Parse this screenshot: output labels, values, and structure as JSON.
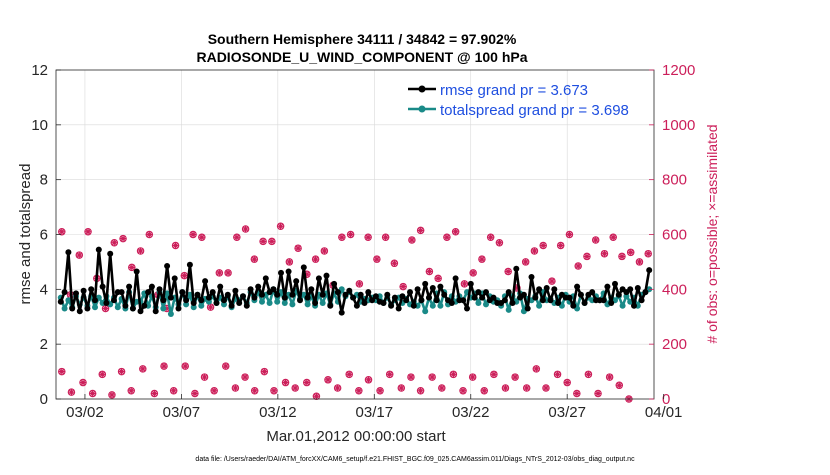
{
  "chart_data": {
    "type": "line",
    "title_line1": "Southern Hemisphere 34111 / 34842 = 97.902%",
    "title_line2": "RADIOSONDE_U_WIND_COMPONENT @ 100 hPa",
    "xlabel": "Mar.01,2012 00:00:00 start",
    "ylabel_left": "rmse and totalspread",
    "ylabel_right": "# of obs: o=possible; ×=assimilated",
    "footer": "data file: /Users/raeder/DAI/ATM_forcXX/CAM6_setup/f.e21.FHIST_BGC.f09_025.CAM6assim.011/Diags_NTrS_2012-03/obs_diag_output.nc",
    "x_range_days": [
      0.5,
      31.5
    ],
    "x_ticks": [
      {
        "day": 2,
        "label": "03/02"
      },
      {
        "day": 7,
        "label": "03/07"
      },
      {
        "day": 12,
        "label": "03/12"
      },
      {
        "day": 17,
        "label": "03/17"
      },
      {
        "day": 22,
        "label": "03/22"
      },
      {
        "day": 27,
        "label": "03/27"
      },
      {
        "day": 32,
        "label": "04/01"
      }
    ],
    "left_axis": {
      "min": 0,
      "max": 12,
      "ticks": [
        "0",
        "2",
        "4",
        "6",
        "8",
        "10",
        "12"
      ]
    },
    "right_axis": {
      "min": 0,
      "max": 1200,
      "ticks": [
        "0",
        "200",
        "400",
        "600",
        "800",
        "1000",
        "1200"
      ]
    },
    "legend": [
      {
        "label": "rmse grand pr = 3.673",
        "color": "#000000"
      },
      {
        "label": "totalspread grand pr = 3.698",
        "color": "#1a8a88"
      }
    ],
    "colors": {
      "rmse": "#000000",
      "spread": "#1a8a88",
      "obs": "#cc1f5a",
      "legend_text": "#1f4fe0",
      "right_axis": "#cc1f5a"
    },
    "series": [
      {
        "name": "rmse",
        "values": [
          3.55,
          3.9,
          5.35,
          3.3,
          3.85,
          3.2,
          3.95,
          3.3,
          4.0,
          3.6,
          5.45,
          4.1,
          3.5,
          5.3,
          3.6,
          3.9,
          3.9,
          3.4,
          4.1,
          3.3,
          4.65,
          3.2,
          3.4,
          3.9,
          4.1,
          3.2,
          4.0,
          3.6,
          4.85,
          3.7,
          4.4,
          3.3,
          3.9,
          3.6,
          4.9,
          3.5,
          3.8,
          3.6,
          4.3,
          3.7,
          3.9,
          3.5,
          4.1,
          3.6,
          3.8,
          3.4,
          3.95,
          3.5,
          3.75,
          3.4,
          4.0,
          3.7,
          4.1,
          3.8,
          4.4,
          3.9,
          4.0,
          3.8,
          4.6,
          3.7,
          4.65,
          3.8,
          4.3,
          3.6,
          4.8,
          3.7,
          4.0,
          3.5,
          4.4,
          3.8,
          4.5,
          3.4,
          4.2,
          3.9,
          3.15,
          3.8,
          3.95,
          3.7,
          3.4,
          3.8,
          3.5,
          3.9,
          3.6,
          3.75,
          3.55,
          3.5,
          3.8,
          3.4,
          3.7,
          3.3,
          3.75,
          3.6,
          3.9,
          3.4,
          4.0,
          3.6,
          4.2,
          3.7,
          4.05,
          3.6,
          4.1,
          3.8,
          3.6,
          3.5,
          4.4,
          3.6,
          3.6,
          3.3,
          4.2,
          3.7,
          3.9,
          3.7,
          3.9,
          3.6,
          3.7,
          3.5,
          3.5,
          3.6,
          3.9,
          3.5,
          4.75,
          3.7,
          3.8,
          3.3,
          4.45,
          3.7,
          4.0,
          3.6,
          4.05,
          3.6,
          4.0,
          3.5,
          3.8,
          3.7,
          3.7,
          3.4,
          4.1,
          3.8,
          3.5,
          3.8,
          3.9,
          3.6,
          3.6,
          3.6,
          4.1,
          3.5,
          4.2,
          3.8,
          4.0,
          3.9,
          4.0,
          3.4,
          4.05,
          3.6,
          3.9,
          4.7
        ]
      },
      {
        "name": "totalspread",
        "values": [
          3.7,
          3.3,
          3.6,
          3.35,
          3.75,
          3.45,
          3.7,
          3.4,
          3.75,
          3.35,
          3.7,
          3.5,
          3.75,
          3.45,
          3.7,
          3.35,
          3.65,
          3.3,
          3.9,
          3.3,
          3.55,
          3.55,
          3.85,
          3.4,
          3.75,
          3.35,
          3.9,
          3.3,
          3.85,
          3.1,
          3.7,
          3.45,
          3.9,
          3.45,
          3.8,
          3.35,
          3.8,
          3.4,
          3.65,
          3.55,
          3.75,
          3.5,
          3.7,
          3.45,
          3.75,
          3.35,
          3.65,
          3.6,
          3.75,
          3.5,
          3.9,
          3.6,
          3.9,
          3.55,
          3.8,
          3.5,
          4.0,
          3.55,
          3.9,
          3.5,
          3.8,
          3.45,
          3.95,
          3.65,
          3.8,
          3.45,
          3.75,
          3.4,
          3.8,
          3.5,
          3.85,
          3.45,
          3.85,
          3.55,
          4.0,
          3.75,
          3.9,
          3.7,
          3.8,
          3.55,
          3.65,
          3.6,
          3.7,
          3.6,
          3.75,
          3.5,
          3.7,
          3.45,
          3.6,
          3.7,
          3.5,
          3.65,
          3.45,
          3.55,
          3.4,
          3.6,
          3.2,
          3.7,
          3.4,
          3.85,
          3.4,
          3.9,
          3.45,
          3.75,
          3.55,
          3.75,
          3.6,
          3.9,
          3.7,
          3.85,
          3.5,
          3.85,
          3.45,
          3.75,
          3.55,
          3.6,
          3.4,
          3.75,
          3.25,
          3.75,
          3.55,
          3.85,
          3.2,
          3.65,
          3.6,
          3.75,
          3.4,
          3.9,
          3.6,
          3.65,
          3.5,
          3.7,
          3.4,
          3.8,
          3.55,
          3.75,
          3.3,
          3.8,
          3.5,
          3.7,
          3.6,
          3.75,
          3.6,
          3.85,
          3.45,
          3.7,
          3.6,
          3.75,
          3.4,
          3.75,
          3.55,
          3.7,
          3.4,
          3.8,
          3.9,
          4.0
        ]
      }
    ],
    "obs_high": [
      610,
      380,
      525,
      610,
      440,
      330,
      570,
      585,
      480,
      540,
      600,
      380,
      330,
      560,
      450,
      600,
      590,
      335,
      460,
      460,
      590,
      620,
      510,
      575,
      575,
      630,
      500,
      550,
      455,
      510,
      540,
      415,
      590,
      600,
      420,
      590,
      510,
      590,
      495,
      410,
      580,
      615,
      465,
      440,
      590,
      610,
      420,
      460,
      510,
      590,
      570,
      465,
      405,
      500,
      540,
      560,
      430,
      560,
      600,
      485,
      520,
      580,
      530,
      590,
      520,
      535,
      500,
      530
    ],
    "obs_low": [
      100,
      25,
      60,
      20,
      90,
      15,
      100,
      30,
      110,
      20,
      120,
      30,
      120,
      20,
      80,
      30,
      120,
      40,
      80,
      30,
      100,
      30,
      60,
      40,
      60,
      10,
      70,
      40,
      90,
      30,
      70,
      30,
      90,
      40,
      80,
      30,
      80,
      40,
      90,
      30,
      80,
      30,
      90,
      40,
      80,
      40,
      110,
      40,
      90,
      60,
      20,
      90,
      20,
      80,
      50,
      0
    ],
    "obs_low_x": [
      0.8,
      1.3,
      1.9,
      2.4,
      2.9,
      3.4,
      3.9,
      4.4,
      5.0,
      5.6,
      6.1,
      6.6,
      7.2,
      7.7,
      8.2,
      8.7,
      9.3,
      9.8,
      10.3,
      10.8,
      11.3,
      11.8,
      12.4,
      12.9,
      13.5,
      14.0,
      14.6,
      15.1,
      15.7,
      16.2,
      16.7,
      17.3,
      17.8,
      18.4,
      18.9,
      19.4,
      20.0,
      20.5,
      21.1,
      21.6,
      22.1,
      22.7,
      23.2,
      23.8,
      24.3,
      24.9,
      25.4,
      25.9,
      26.5,
      27.0,
      27.5,
      28.1,
      28.6,
      29.2,
      29.7,
      30.2
    ]
  }
}
